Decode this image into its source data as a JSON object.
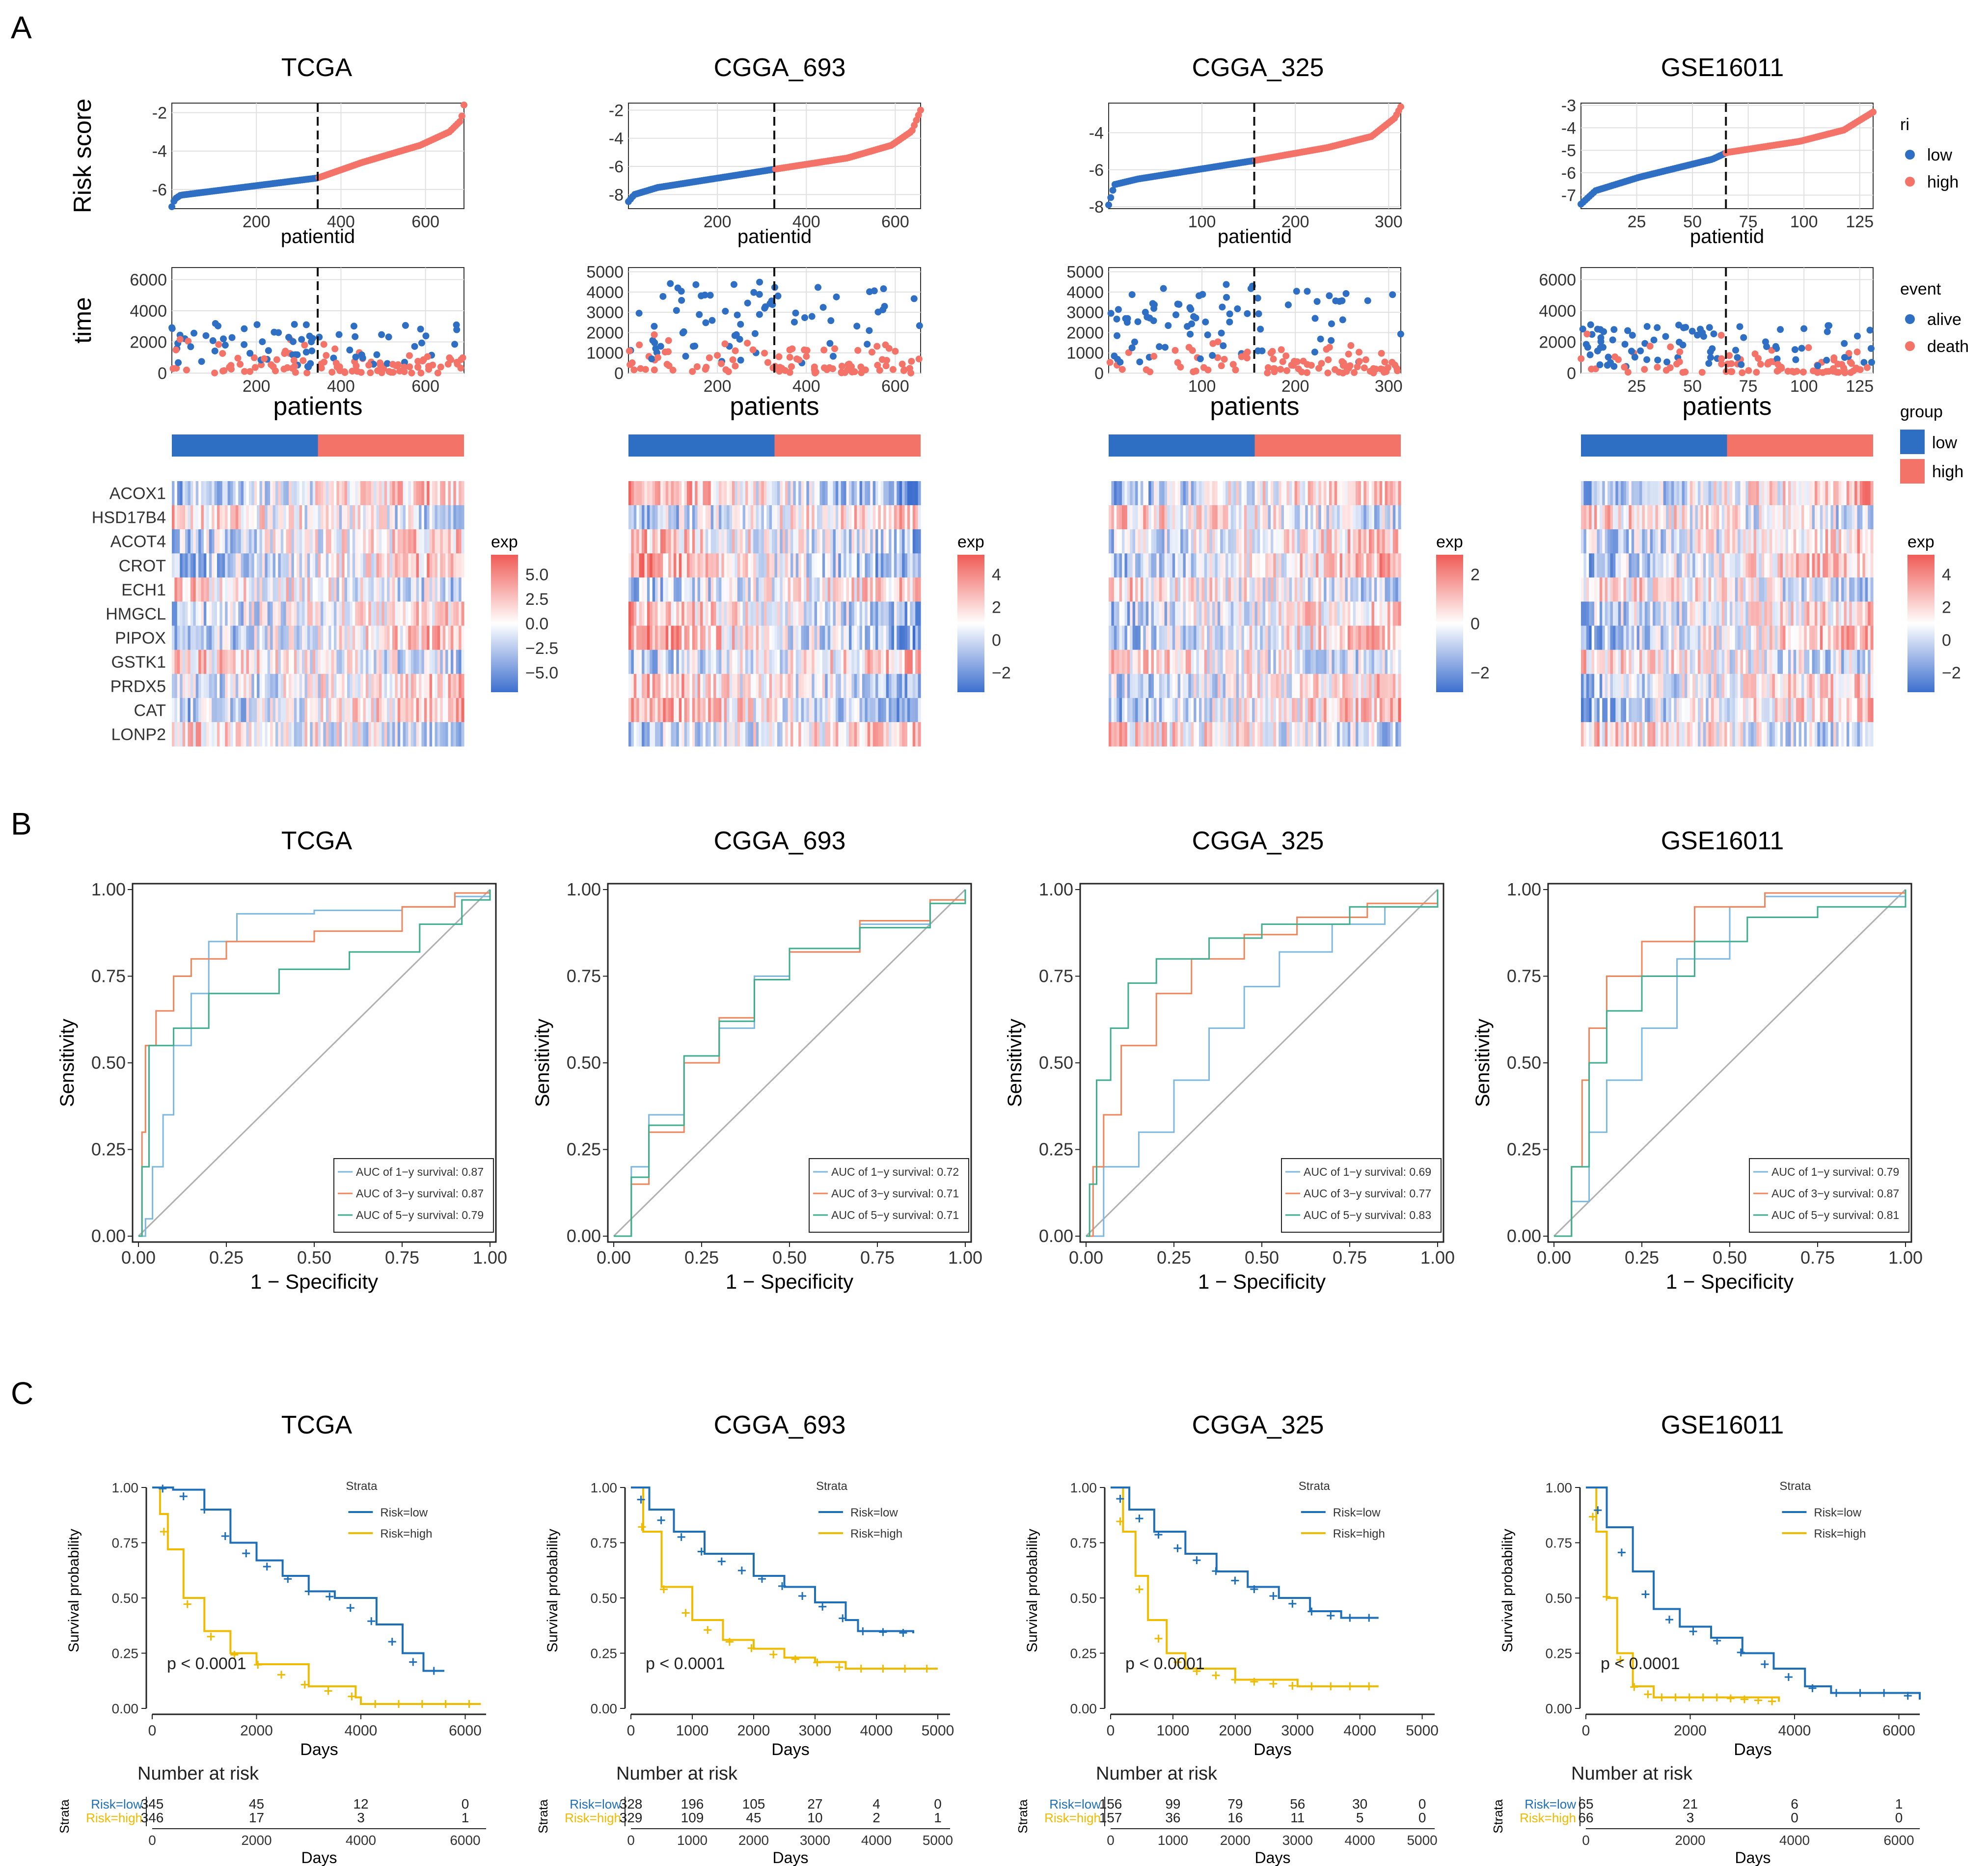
{
  "panel_labels": [
    "A",
    "B",
    "C"
  ],
  "cohorts": [
    "TCGA",
    "CGGA_693",
    "CGGA_325",
    "GSE16011"
  ],
  "genes": [
    "ACOX1",
    "HSD17B4",
    "ACOT4",
    "CROT",
    "ECH1",
    "HMGCL",
    "PIPOX",
    "GSTK1",
    "PRDX5",
    "CAT",
    "LONP2"
  ],
  "labels": {
    "risk_score": "Risk score",
    "time": "time",
    "patientid": "patientid",
    "patients": "patients",
    "sensitivity": "Sensitivity",
    "one_minus_spec": "1 − Specificity",
    "survival_probability": "Survival probability",
    "days": "Days",
    "number_at_risk": "Number at risk",
    "strata": "Strata",
    "risk_low": "Risk=low",
    "risk_high": "Risk=high",
    "p_value": "p < 0.0001",
    "auc_1": "AUC of 1−y survival:",
    "auc_3": "AUC of 3−y survival:",
    "auc_5": "AUC of 5−y survival:"
  },
  "legends": {
    "ri": {
      "title": "ri",
      "items": [
        "low",
        "high"
      ]
    },
    "event": {
      "title": "event",
      "items": [
        "alive",
        "death"
      ]
    },
    "group": {
      "title": "group",
      "items": [
        "low",
        "high"
      ]
    },
    "exp_title": "exp"
  },
  "colors": {
    "low": "#2e6fc4",
    "high": "#f47368",
    "gray_line": "#b0b0b0",
    "roc_1y": "#7db8e0",
    "roc_3y": "#f0855c",
    "roc_5y": "#3fae8e",
    "km_low": "#1f6fb8",
    "km_high": "#eebb00",
    "heat_low": "#3d6fcf",
    "heat_mid": "#ffffff",
    "heat_high": "#f05b56"
  },
  "chart_data": [
    {
      "type": "scatter",
      "cohort": "TCGA",
      "title": "TCGA",
      "xlabel": "patientid",
      "ylabel": "Risk score",
      "n": 691,
      "cutoff": 345,
      "risk_curve": [
        [
          0,
          -6.9
        ],
        [
          0.01,
          -6.5
        ],
        [
          0.03,
          -6.3
        ],
        [
          0.5,
          -5.4
        ],
        [
          0.65,
          -4.6
        ],
        [
          0.85,
          -3.7
        ],
        [
          0.95,
          -3.0
        ],
        [
          0.99,
          -2.4
        ],
        [
          1,
          -1.6
        ]
      ],
      "ylim": [
        -7,
        -1.5
      ],
      "yticks": [
        -6,
        -4,
        -2
      ],
      "xticks": [
        200,
        400,
        600
      ],
      "time_max": 6500,
      "time_ticks": [
        0,
        2000,
        4000,
        6000
      ],
      "exp_ticks": [
        "5.0",
        "2.5",
        "0.0",
        "−2.5",
        "−5.0"
      ],
      "auc": [
        "0.87",
        "0.87",
        "0.79"
      ],
      "roc_1y": [
        [
          0,
          0
        ],
        [
          0.02,
          0.05
        ],
        [
          0.04,
          0.2
        ],
        [
          0.07,
          0.35
        ],
        [
          0.1,
          0.55
        ],
        [
          0.15,
          0.7
        ],
        [
          0.2,
          0.85
        ],
        [
          0.28,
          0.93
        ],
        [
          0.5,
          0.94
        ],
        [
          0.75,
          0.95
        ],
        [
          0.9,
          0.98
        ],
        [
          1,
          1
        ]
      ],
      "roc_3y": [
        [
          0,
          0
        ],
        [
          0.01,
          0.3
        ],
        [
          0.02,
          0.55
        ],
        [
          0.05,
          0.65
        ],
        [
          0.1,
          0.75
        ],
        [
          0.15,
          0.8
        ],
        [
          0.25,
          0.85
        ],
        [
          0.5,
          0.88
        ],
        [
          0.75,
          0.95
        ],
        [
          0.9,
          0.99
        ],
        [
          1,
          1
        ]
      ],
      "roc_5y": [
        [
          0,
          0
        ],
        [
          0.01,
          0.2
        ],
        [
          0.03,
          0.55
        ],
        [
          0.1,
          0.6
        ],
        [
          0.2,
          0.7
        ],
        [
          0.4,
          0.77
        ],
        [
          0.6,
          0.82
        ],
        [
          0.8,
          0.9
        ],
        [
          0.92,
          0.97
        ],
        [
          1,
          1
        ]
      ],
      "km_xmax": 6400,
      "km_ticks": [
        0,
        2000,
        4000,
        6000
      ],
      "km_low": [
        [
          0,
          1
        ],
        [
          400,
          0.99
        ],
        [
          1000,
          0.9
        ],
        [
          1500,
          0.75
        ],
        [
          2000,
          0.67
        ],
        [
          2500,
          0.6
        ],
        [
          3000,
          0.53
        ],
        [
          3500,
          0.5
        ],
        [
          4300,
          0.38
        ],
        [
          4800,
          0.25
        ],
        [
          5200,
          0.17
        ],
        [
          5600,
          0.17
        ]
      ],
      "km_high": [
        [
          0,
          1
        ],
        [
          150,
          0.88
        ],
        [
          300,
          0.72
        ],
        [
          600,
          0.5
        ],
        [
          1000,
          0.35
        ],
        [
          1500,
          0.25
        ],
        [
          2000,
          0.2
        ],
        [
          3000,
          0.1
        ],
        [
          3900,
          0.05
        ],
        [
          4000,
          0.02
        ],
        [
          6300,
          0.02
        ]
      ],
      "risk_low": [
        "345",
        "45",
        "12",
        "0"
      ],
      "risk_high": [
        "346",
        "17",
        "3",
        "1"
      ]
    },
    {
      "type": "scatter",
      "cohort": "CGGA_693",
      "title": "CGGA_693",
      "xlabel": "patientid",
      "ylabel": "",
      "n": 657,
      "cutoff": 328,
      "risk_curve": [
        [
          0,
          -8.5
        ],
        [
          0.02,
          -8.0
        ],
        [
          0.1,
          -7.5
        ],
        [
          0.5,
          -6.2
        ],
        [
          0.75,
          -5.4
        ],
        [
          0.9,
          -4.5
        ],
        [
          0.97,
          -3.5
        ],
        [
          1,
          -2.0
        ]
      ],
      "ylim": [
        -9,
        -1.5
      ],
      "yticks": [
        -8,
        -6,
        -4,
        -2
      ],
      "xticks": [
        200,
        400,
        600
      ],
      "time_max": 5000,
      "time_ticks": [
        0,
        1000,
        2000,
        3000,
        4000,
        5000
      ],
      "exp_ticks": [
        "4",
        "2",
        "0",
        "−2"
      ],
      "auc": [
        "0.72",
        "0.71",
        "0.71"
      ],
      "roc_1y": [
        [
          0,
          0
        ],
        [
          0.05,
          0.2
        ],
        [
          0.1,
          0.35
        ],
        [
          0.2,
          0.5
        ],
        [
          0.3,
          0.6
        ],
        [
          0.4,
          0.75
        ],
        [
          0.5,
          0.82
        ],
        [
          0.7,
          0.9
        ],
        [
          0.9,
          0.97
        ],
        [
          1,
          1
        ]
      ],
      "roc_3y": [
        [
          0,
          0
        ],
        [
          0.05,
          0.15
        ],
        [
          0.1,
          0.3
        ],
        [
          0.2,
          0.5
        ],
        [
          0.3,
          0.63
        ],
        [
          0.4,
          0.74
        ],
        [
          0.5,
          0.82
        ],
        [
          0.7,
          0.91
        ],
        [
          0.9,
          0.97
        ],
        [
          1,
          1
        ]
      ],
      "roc_5y": [
        [
          0,
          0
        ],
        [
          0.05,
          0.17
        ],
        [
          0.1,
          0.32
        ],
        [
          0.2,
          0.52
        ],
        [
          0.3,
          0.62
        ],
        [
          0.4,
          0.74
        ],
        [
          0.5,
          0.83
        ],
        [
          0.7,
          0.89
        ],
        [
          0.9,
          0.96
        ],
        [
          1,
          1
        ]
      ],
      "km_xmax": 5200,
      "km_ticks": [
        0,
        1000,
        2000,
        3000,
        4000,
        5000
      ],
      "km_low": [
        [
          0,
          1
        ],
        [
          300,
          0.9
        ],
        [
          700,
          0.8
        ],
        [
          1200,
          0.7
        ],
        [
          2000,
          0.6
        ],
        [
          2500,
          0.55
        ],
        [
          3000,
          0.48
        ],
        [
          3500,
          0.4
        ],
        [
          3700,
          0.35
        ],
        [
          4600,
          0.34
        ]
      ],
      "km_high": [
        [
          0,
          1
        ],
        [
          200,
          0.8
        ],
        [
          500,
          0.55
        ],
        [
          1000,
          0.4
        ],
        [
          1500,
          0.31
        ],
        [
          2000,
          0.27
        ],
        [
          2500,
          0.23
        ],
        [
          3000,
          0.21
        ],
        [
          3500,
          0.18
        ],
        [
          5000,
          0.18
        ]
      ],
      "risk_low": [
        "328",
        "196",
        "105",
        "27",
        "4",
        "0"
      ],
      "risk_high": [
        "329",
        "109",
        "45",
        "10",
        "2",
        "1"
      ]
    },
    {
      "type": "scatter",
      "cohort": "CGGA_325",
      "title": "CGGA_325",
      "xlabel": "patientid",
      "ylabel": "",
      "n": 313,
      "cutoff": 156,
      "risk_curve": [
        [
          0,
          -7.9
        ],
        [
          0.02,
          -6.8
        ],
        [
          0.1,
          -6.5
        ],
        [
          0.5,
          -5.5
        ],
        [
          0.75,
          -4.8
        ],
        [
          0.9,
          -4.2
        ],
        [
          0.98,
          -3.2
        ],
        [
          1,
          -2.6
        ]
      ],
      "ylim": [
        -8.1,
        -2.4
      ],
      "yticks": [
        -8,
        -6,
        -4
      ],
      "xticks": [
        100,
        200,
        300
      ],
      "time_max": 5000,
      "time_ticks": [
        0,
        1000,
        2000,
        3000,
        4000,
        5000
      ],
      "exp_ticks": [
        "2",
        "0",
        "−2"
      ],
      "auc": [
        "0.69",
        "0.77",
        "0.83"
      ],
      "roc_1y": [
        [
          0,
          0
        ],
        [
          0.05,
          0.2
        ],
        [
          0.15,
          0.3
        ],
        [
          0.25,
          0.45
        ],
        [
          0.35,
          0.6
        ],
        [
          0.45,
          0.72
        ],
        [
          0.55,
          0.82
        ],
        [
          0.7,
          0.9
        ],
        [
          0.85,
          0.95
        ],
        [
          1,
          1
        ]
      ],
      "roc_3y": [
        [
          0,
          0
        ],
        [
          0.02,
          0.2
        ],
        [
          0.05,
          0.35
        ],
        [
          0.1,
          0.55
        ],
        [
          0.2,
          0.7
        ],
        [
          0.3,
          0.8
        ],
        [
          0.45,
          0.87
        ],
        [
          0.6,
          0.92
        ],
        [
          0.8,
          0.96
        ],
        [
          1,
          1
        ]
      ],
      "roc_5y": [
        [
          0,
          0
        ],
        [
          0.01,
          0.15
        ],
        [
          0.03,
          0.45
        ],
        [
          0.07,
          0.6
        ],
        [
          0.12,
          0.73
        ],
        [
          0.2,
          0.8
        ],
        [
          0.35,
          0.86
        ],
        [
          0.5,
          0.9
        ],
        [
          0.75,
          0.95
        ],
        [
          1,
          1
        ]
      ],
      "km_xmax": 5200,
      "km_ticks": [
        0,
        1000,
        2000,
        3000,
        4000,
        5000
      ],
      "km_low": [
        [
          0,
          1
        ],
        [
          300,
          0.9
        ],
        [
          700,
          0.8
        ],
        [
          1200,
          0.7
        ],
        [
          1700,
          0.62
        ],
        [
          2200,
          0.55
        ],
        [
          2700,
          0.5
        ],
        [
          3200,
          0.44
        ],
        [
          3700,
          0.41
        ],
        [
          4300,
          0.41
        ]
      ],
      "km_high": [
        [
          0,
          1
        ],
        [
          200,
          0.8
        ],
        [
          400,
          0.6
        ],
        [
          600,
          0.4
        ],
        [
          900,
          0.25
        ],
        [
          1200,
          0.18
        ],
        [
          2000,
          0.13
        ],
        [
          3000,
          0.1
        ],
        [
          4300,
          0.1
        ]
      ],
      "risk_low": [
        "156",
        "99",
        "79",
        "56",
        "30",
        "0"
      ],
      "risk_high": [
        "157",
        "36",
        "16",
        "11",
        "5",
        "0"
      ]
    },
    {
      "type": "scatter",
      "cohort": "GSE16011",
      "title": "GSE16011",
      "xlabel": "patientid",
      "ylabel": "",
      "n": 131,
      "cutoff": 65,
      "risk_curve": [
        [
          0,
          -7.4
        ],
        [
          0.05,
          -6.8
        ],
        [
          0.2,
          -6.2
        ],
        [
          0.45,
          -5.4
        ],
        [
          0.5,
          -5.1
        ],
        [
          0.75,
          -4.6
        ],
        [
          0.9,
          -4.1
        ],
        [
          1,
          -3.3
        ]
      ],
      "ylim": [
        -7.6,
        -2.9
      ],
      "yticks": [
        -7,
        -6,
        -5,
        -4,
        -3
      ],
      "xticks": [
        25,
        50,
        75,
        100,
        125
      ],
      "time_max": 6500,
      "time_ticks": [
        0,
        2000,
        4000,
        6000
      ],
      "exp_ticks": [
        "4",
        "2",
        "0",
        "−2"
      ],
      "auc": [
        "0.79",
        "0.87",
        "0.81"
      ],
      "roc_1y": [
        [
          0,
          0
        ],
        [
          0.05,
          0.1
        ],
        [
          0.1,
          0.3
        ],
        [
          0.15,
          0.45
        ],
        [
          0.25,
          0.6
        ],
        [
          0.35,
          0.8
        ],
        [
          0.5,
          0.95
        ],
        [
          0.6,
          0.98
        ],
        [
          1,
          1
        ]
      ],
      "roc_3y": [
        [
          0,
          0
        ],
        [
          0.05,
          0.2
        ],
        [
          0.08,
          0.45
        ],
        [
          0.1,
          0.6
        ],
        [
          0.15,
          0.75
        ],
        [
          0.25,
          0.85
        ],
        [
          0.4,
          0.95
        ],
        [
          0.6,
          0.99
        ],
        [
          1,
          1
        ]
      ],
      "roc_5y": [
        [
          0,
          0
        ],
        [
          0.05,
          0.2
        ],
        [
          0.1,
          0.5
        ],
        [
          0.15,
          0.65
        ],
        [
          0.25,
          0.75
        ],
        [
          0.4,
          0.85
        ],
        [
          0.55,
          0.92
        ],
        [
          0.75,
          0.95
        ],
        [
          1,
          1
        ]
      ],
      "km_xmax": 6400,
      "km_ticks": [
        0,
        2000,
        4000,
        6000
      ],
      "km_low": [
        [
          0,
          1
        ],
        [
          400,
          0.82
        ],
        [
          900,
          0.62
        ],
        [
          1300,
          0.45
        ],
        [
          1800,
          0.37
        ],
        [
          2400,
          0.32
        ],
        [
          3000,
          0.25
        ],
        [
          3600,
          0.18
        ],
        [
          4200,
          0.1
        ],
        [
          4700,
          0.07
        ],
        [
          6000,
          0.07
        ],
        [
          6400,
          0.04
        ]
      ],
      "km_high": [
        [
          0,
          1
        ],
        [
          200,
          0.8
        ],
        [
          400,
          0.5
        ],
        [
          600,
          0.25
        ],
        [
          900,
          0.1
        ],
        [
          1300,
          0.05
        ],
        [
          2500,
          0.05
        ],
        [
          3700,
          0.03
        ]
      ],
      "risk_low": [
        "65",
        "21",
        "6",
        "1"
      ],
      "risk_high": [
        "66",
        "3",
        "0",
        "0"
      ]
    }
  ]
}
